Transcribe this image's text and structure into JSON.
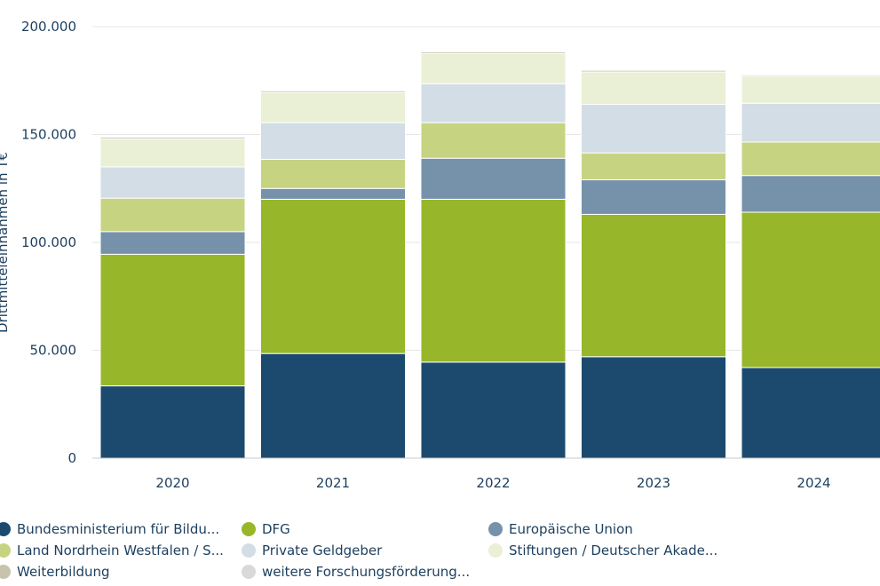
{
  "chart_data": {
    "type": "bar",
    "stacked": true,
    "ylabel": "Drittmitteleinnahmen in T€",
    "ylim": [
      0,
      200000
    ],
    "yticks": [
      "0",
      "50.000",
      "100.000",
      "150.000",
      "200.000"
    ],
    "categories": [
      "2020",
      "2021",
      "2022",
      "2023",
      "2024"
    ],
    "series": [
      {
        "name": "Bundesministerium für Bildu...",
        "color": "#1b4a6e",
        "values": [
          33500,
          48500,
          44500,
          47000,
          42000
        ]
      },
      {
        "name": "DFG",
        "color": "#98b62a",
        "values": [
          61000,
          71500,
          75500,
          66000,
          72000
        ]
      },
      {
        "name": "Europäische Union",
        "color": "#7691aa",
        "values": [
          10500,
          5000,
          19000,
          16000,
          17000
        ]
      },
      {
        "name": "Land Nordrhein Westfalen / S...",
        "color": "#c6d482",
        "values": [
          15500,
          13500,
          16500,
          12500,
          15500
        ]
      },
      {
        "name": "Private Geldgeber",
        "color": "#d3dde5",
        "values": [
          14500,
          17000,
          18000,
          22500,
          18000
        ]
      },
      {
        "name": "Stiftungen / Deutscher Akade...",
        "color": "#e9f0d5",
        "values": [
          13000,
          14000,
          14000,
          15000,
          12500
        ]
      },
      {
        "name": "Weiterbildung",
        "color": "#c9c2ad",
        "values": [
          800,
          800,
          800,
          800,
          600
        ]
      },
      {
        "name": "weitere Forschungsförderung...",
        "color": "#d9d9d9",
        "values": [
          400,
          400,
          400,
          400,
          400
        ]
      }
    ]
  }
}
